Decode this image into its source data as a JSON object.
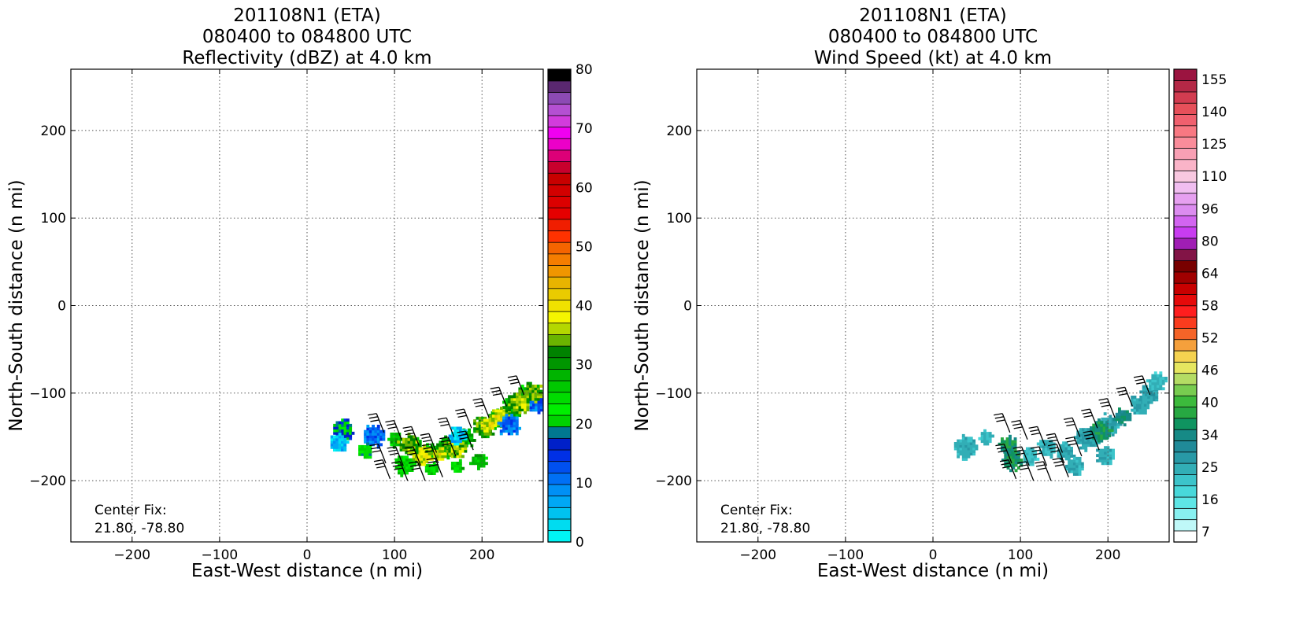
{
  "chart_data": [
    {
      "type": "heatmap",
      "title": [
        "201108N1 (ETA)",
        "080400 to 084800 UTC",
        "Reflectivity (dBZ) at 4.0 km"
      ],
      "xlabel": "East-West distance (n mi)",
      "ylabel": "North-South distance (n mi)",
      "xlim": [
        -270,
        270
      ],
      "ylim": [
        -270,
        270
      ],
      "xticks": [
        -200,
        -100,
        0,
        100,
        200
      ],
      "yticks": [
        -200,
        -100,
        0,
        100,
        200
      ],
      "xtick_labels": [
        "−200",
        "−100",
        "0",
        "100",
        "200"
      ],
      "ytick_labels": [
        "−200",
        "−100",
        "0",
        "100",
        "200"
      ],
      "grid": true,
      "annotation": [
        "Center Fix:",
        "21.80, -78.80"
      ],
      "colorbar": {
        "min": 0,
        "max": 80,
        "tick_values": [
          0,
          10,
          20,
          30,
          40,
          50,
          60,
          70,
          80
        ],
        "tick_labels": [
          "0",
          "10",
          "20",
          "30",
          "40",
          "50",
          "60",
          "70",
          "80"
        ],
        "colors": [
          "#00f5f5",
          "#00dcf0",
          "#00c3f0",
          "#00a8f5",
          "#0090f5",
          "#0070f5",
          "#0050f0",
          "#0030e6",
          "#0020c8",
          "#007890",
          "#00d200",
          "#00ee00",
          "#00dc00",
          "#00c800",
          "#00b400",
          "#009600",
          "#008200",
          "#6ab400",
          "#b4d700",
          "#f5f500",
          "#f0e100",
          "#eacb00",
          "#e8b400",
          "#f09600",
          "#f57d00",
          "#f56400",
          "#ff3200",
          "#f01e00",
          "#e60000",
          "#dc0000",
          "#d20000",
          "#c80000",
          "#c8002d",
          "#dc0078",
          "#ec00c8",
          "#f000f0",
          "#d23cdc",
          "#b450d2",
          "#8c4ab4",
          "#5a2870",
          "#000000"
        ]
      },
      "echo_blobs": [
        {
          "x": 100,
          "y": -152,
          "dbz": 28
        },
        {
          "x": 120,
          "y": -158,
          "dbz": 30
        },
        {
          "x": 140,
          "y": -165,
          "dbz": 28
        },
        {
          "x": 160,
          "y": -160,
          "dbz": 32
        },
        {
          "x": 180,
          "y": -150,
          "dbz": 30
        },
        {
          "x": 200,
          "y": -138,
          "dbz": 33
        },
        {
          "x": 215,
          "y": -128,
          "dbz": 30
        },
        {
          "x": 232,
          "y": -115,
          "dbz": 30
        },
        {
          "x": 250,
          "y": -100,
          "dbz": 28
        },
        {
          "x": 110,
          "y": -180,
          "dbz": 26
        },
        {
          "x": 140,
          "y": -185,
          "dbz": 26
        },
        {
          "x": 170,
          "y": -182,
          "dbz": 27
        },
        {
          "x": 195,
          "y": -175,
          "dbz": 28
        },
        {
          "x": 130,
          "y": -170,
          "dbz": 38
        },
        {
          "x": 150,
          "y": -168,
          "dbz": 38
        },
        {
          "x": 170,
          "y": -162,
          "dbz": 36
        },
        {
          "x": 205,
          "y": -135,
          "dbz": 38
        },
        {
          "x": 220,
          "y": -125,
          "dbz": 38
        },
        {
          "x": 115,
          "y": -157,
          "dbz": 35
        },
        {
          "x": 240,
          "y": -110,
          "dbz": 36
        },
        {
          "x": 75,
          "y": -147,
          "dbz": 12
        },
        {
          "x": 230,
          "y": -135,
          "dbz": 12
        },
        {
          "x": 265,
          "y": -110,
          "dbz": 12
        },
        {
          "x": 65,
          "y": -165,
          "dbz": 22
        },
        {
          "x": 40,
          "y": -140,
          "dbz": 20
        },
        {
          "x": 35,
          "y": -155,
          "dbz": 6
        },
        {
          "x": 170,
          "y": -148,
          "dbz": 6
        },
        {
          "x": 255,
          "y": -98,
          "dbz": 34
        }
      ],
      "wind_barbs": [
        {
          "x": 88,
          "y": -145,
          "kt": 30
        },
        {
          "x": 108,
          "y": -153,
          "kt": 30
        },
        {
          "x": 128,
          "y": -160,
          "kt": 30
        },
        {
          "x": 148,
          "y": -168,
          "kt": 30
        },
        {
          "x": 168,
          "y": -150,
          "kt": 30
        },
        {
          "x": 188,
          "y": -140,
          "kt": 30
        },
        {
          "x": 208,
          "y": -128,
          "kt": 30
        },
        {
          "x": 228,
          "y": -115,
          "kt": 30
        },
        {
          "x": 248,
          "y": -102,
          "kt": 30
        },
        {
          "x": 90,
          "y": -180,
          "kt": 30
        },
        {
          "x": 110,
          "y": -183,
          "kt": 30
        },
        {
          "x": 130,
          "y": -183,
          "kt": 30
        },
        {
          "x": 150,
          "y": -180,
          "kt": 30
        },
        {
          "x": 170,
          "y": -172,
          "kt": 30
        },
        {
          "x": 190,
          "y": -165,
          "kt": 30
        },
        {
          "x": 95,
          "y": -198,
          "kt": 30
        },
        {
          "x": 115,
          "y": -200,
          "kt": 30
        },
        {
          "x": 135,
          "y": -200,
          "kt": 30
        },
        {
          "x": 155,
          "y": -196,
          "kt": 30
        }
      ]
    },
    {
      "type": "heatmap",
      "title": [
        "201108N1 (ETA)",
        "080400 to 084800 UTC",
        "Wind Speed (kt) at 4.0 km"
      ],
      "xlabel": "East-West distance (n mi)",
      "ylabel": "North-South distance (n mi)",
      "xlim": [
        -270,
        270
      ],
      "ylim": [
        -270,
        270
      ],
      "xticks": [
        -200,
        -100,
        0,
        100,
        200
      ],
      "yticks": [
        -200,
        -100,
        0,
        100,
        200
      ],
      "xtick_labels": [
        "−200",
        "−100",
        "0",
        "100",
        "200"
      ],
      "ytick_labels": [
        "−200",
        "−100",
        "0",
        "100",
        "200"
      ],
      "grid": true,
      "annotation": [
        "Center Fix:",
        "21.80, -78.80"
      ],
      "colorbar": {
        "tick_labels": [
          "7",
          "16",
          "25",
          "34",
          "40",
          "46",
          "52",
          "58",
          "64",
          "80",
          "96",
          "110",
          "125",
          "140",
          "155"
        ],
        "colors": [
          "#ffffff",
          "#bff8f8",
          "#88f0f0",
          "#5ee6e6",
          "#48d8da",
          "#3cc4ca",
          "#32aeb6",
          "#2899a6",
          "#208a98",
          "#168a86",
          "#0f9460",
          "#27a842",
          "#3cba3c",
          "#78cc50",
          "#b4dc64",
          "#e6e660",
          "#f5d250",
          "#f5a03c",
          "#f56428",
          "#fa3c1e",
          "#ff1e1e",
          "#e60a0a",
          "#c80000",
          "#a00000",
          "#780000",
          "#821446",
          "#a01eb4",
          "#c83cf0",
          "#d264f0",
          "#dc8cf0",
          "#e6a0f0",
          "#f0bef0",
          "#f8c8e0",
          "#fab4c8",
          "#f8a0b4",
          "#fa8c9a",
          "#f87882",
          "#f0606e",
          "#e6505a",
          "#d23c50",
          "#b42846",
          "#9b1440"
        ]
      },
      "wind_blobs": [
        {
          "x": 150,
          "y": -165,
          "kt": 24
        },
        {
          "x": 200,
          "y": -135,
          "kt": 25
        },
        {
          "x": 110,
          "y": -170,
          "kt": 22
        },
        {
          "x": 235,
          "y": -112,
          "kt": 25
        },
        {
          "x": 175,
          "y": -150,
          "kt": 26
        },
        {
          "x": 130,
          "y": -160,
          "kt": 24
        },
        {
          "x": 90,
          "y": -175,
          "kt": 36
        },
        {
          "x": 85,
          "y": -158,
          "kt": 36
        },
        {
          "x": 190,
          "y": -142,
          "kt": 36
        },
        {
          "x": 215,
          "y": -125,
          "kt": 34
        },
        {
          "x": 245,
          "y": -100,
          "kt": 26
        },
        {
          "x": 160,
          "y": -182,
          "kt": 24
        },
        {
          "x": 195,
          "y": -170,
          "kt": 24
        },
        {
          "x": 60,
          "y": -148,
          "kt": 22
        },
        {
          "x": 35,
          "y": -160,
          "kt": 24
        },
        {
          "x": 255,
          "y": -85,
          "kt": 22
        }
      ],
      "wind_barbs": [
        {
          "x": 88,
          "y": -145,
          "kt": 30
        },
        {
          "x": 108,
          "y": -153,
          "kt": 30
        },
        {
          "x": 128,
          "y": -160,
          "kt": 30
        },
        {
          "x": 148,
          "y": -168,
          "kt": 30
        },
        {
          "x": 168,
          "y": -150,
          "kt": 30
        },
        {
          "x": 188,
          "y": -140,
          "kt": 30
        },
        {
          "x": 208,
          "y": -128,
          "kt": 30
        },
        {
          "x": 228,
          "y": -115,
          "kt": 30
        },
        {
          "x": 248,
          "y": -102,
          "kt": 30
        },
        {
          "x": 90,
          "y": -180,
          "kt": 30
        },
        {
          "x": 110,
          "y": -183,
          "kt": 30
        },
        {
          "x": 130,
          "y": -183,
          "kt": 30
        },
        {
          "x": 150,
          "y": -180,
          "kt": 30
        },
        {
          "x": 170,
          "y": -172,
          "kt": 30
        },
        {
          "x": 190,
          "y": -165,
          "kt": 30
        },
        {
          "x": 95,
          "y": -198,
          "kt": 30
        },
        {
          "x": 115,
          "y": -200,
          "kt": 30
        },
        {
          "x": 135,
          "y": -200,
          "kt": 30
        },
        {
          "x": 155,
          "y": -196,
          "kt": 30
        }
      ]
    }
  ]
}
